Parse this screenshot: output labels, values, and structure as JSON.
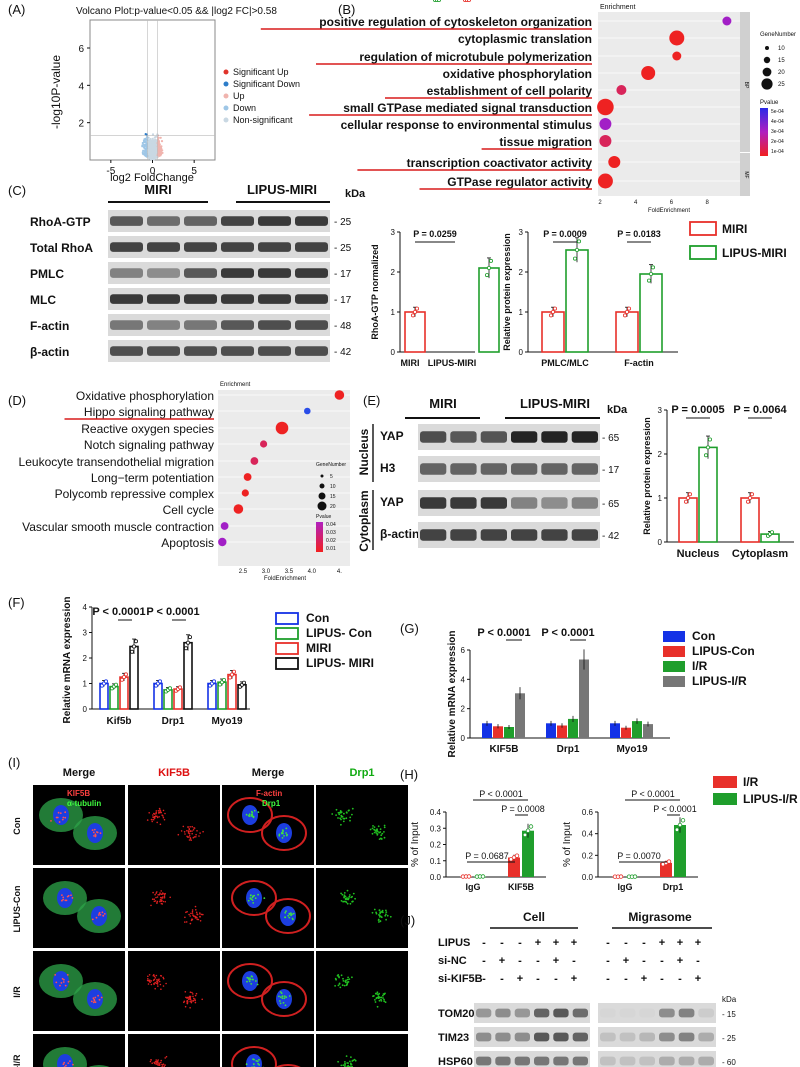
{
  "colors": {
    "red": "#e8302a",
    "green": "#1f9e2c",
    "blue": "#1432e6",
    "gray": "#777777",
    "black": "#111111",
    "sigUp": "#e0332b",
    "sigDown": "#2d7dc9",
    "up": "#f0b4ae",
    "down": "#9ec6e6",
    "nonsig": "#c9d8e3"
  },
  "panelA": {
    "label": "(A)",
    "title": "Volcano Plot:p-value<0.05 && |log2 FC|>0.58",
    "ylabel": "-log10P-value",
    "xlabel": "log2 FoldChange",
    "yticks": [
      "2",
      "4",
      "6"
    ],
    "xticks": [
      "-5",
      "0",
      "5"
    ],
    "legend": [
      {
        "name": "Significant Up",
        "color": "#e0332b"
      },
      {
        "name": "Significant Down",
        "color": "#2d7dc9"
      },
      {
        "name": "Up",
        "color": "#f0b4ae"
      },
      {
        "name": "Down",
        "color": "#9ec6e6"
      },
      {
        "name": "Non-significant",
        "color": "#c9d8e3"
      }
    ]
  },
  "panelB": {
    "label": "(B)",
    "axis_title": "Enrichment",
    "xlabel": "FoldEnrichment",
    "xticks": [
      "2",
      "4",
      "6",
      "8"
    ],
    "terms": [
      {
        "name": "positive regulation of cytoskeleton organization",
        "underline": true,
        "fe": 9.1,
        "size": 10,
        "p": 5e-05,
        "group": "BP"
      },
      {
        "name": "cytoplasmic translation",
        "underline": false,
        "fe": 6.3,
        "size": 22,
        "p": 5e-06,
        "group": "BP"
      },
      {
        "name": "regulation of microtubule polymerization",
        "underline": true,
        "fe": 6.3,
        "size": 10,
        "p": 1e-05,
        "group": "BP"
      },
      {
        "name": "oxidative phosphorylation",
        "underline": false,
        "fe": 4.7,
        "size": 20,
        "p": 5e-06,
        "group": "BP"
      },
      {
        "name": "establishment of cell polarity",
        "underline": true,
        "fe": 3.2,
        "size": 12,
        "p": 3e-05,
        "group": "BP"
      },
      {
        "name": "small GTPase mediated signal transduction",
        "underline": true,
        "fe": 2.3,
        "size": 25,
        "p": 1e-05,
        "group": "BP"
      },
      {
        "name": "cellular response to environmental stimulus",
        "underline": false,
        "fe": 2.3,
        "size": 16,
        "p": 4e-05,
        "group": "BP"
      },
      {
        "name": "tissue migration",
        "underline": true,
        "fe": 2.3,
        "size": 16,
        "p": 3.8e-05,
        "group": "BP"
      },
      {
        "name": "transcription coactivator activity",
        "underline": true,
        "fe": 2.8,
        "size": 16,
        "p": 1e-05,
        "group": "MF"
      },
      {
        "name": "GTPase regulator activity",
        "underline": true,
        "fe": 2.3,
        "size": 22,
        "p": 5e-06,
        "group": "MF"
      }
    ],
    "size_legend_title": "GeneNumber",
    "size_legend": [
      "10",
      "15",
      "20",
      "25"
    ],
    "p_legend_title": "Pvalue",
    "p_legend": [
      "5e-04",
      "4e-04",
      "3e-04",
      "2e-04",
      "1e-04"
    ],
    "groups": [
      "BP",
      "MF"
    ]
  },
  "panelC": {
    "label": "(C)",
    "groups": [
      "MIRI",
      "LIPUS-MIRI"
    ],
    "kda": "kDa",
    "rows": [
      {
        "name": "RhoA-GTP",
        "kda": "- 25"
      },
      {
        "name": "Total RhoA",
        "kda": "- 25"
      },
      {
        "name": "PMLC",
        "kda": "- 17"
      },
      {
        "name": "MLC",
        "kda": "- 17"
      },
      {
        "name": "F-actin",
        "kda": "- 48"
      },
      {
        "name": "β-actin",
        "kda": "- 42"
      }
    ],
    "chart1": {
      "ylabel": "RhoA-GTP normalized",
      "yticks": [
        "0",
        "1",
        "2",
        "3"
      ],
      "ylim": [
        0,
        3
      ],
      "categories": [
        "MIRI",
        "LIPUS-MIRI"
      ],
      "values": [
        1.0,
        2.1
      ],
      "pval": "P = 0.0259"
    },
    "chart2": {
      "ylabel": "Relative protein expression",
      "yticks": [
        "0",
        "1",
        "2",
        "3"
      ],
      "ylim": [
        0,
        3
      ],
      "categories": [
        "PMLC/MLC",
        "F-actin"
      ],
      "series": [
        {
          "name": "MIRI",
          "values": [
            1.0,
            1.0
          ]
        },
        {
          "name": "LIPUS-MIRI",
          "values": [
            2.55,
            1.95
          ]
        }
      ],
      "pvals": [
        "P = 0.0009",
        "P = 0.0183"
      ]
    },
    "legend": [
      "MIRI",
      "LIPUS-MIRI"
    ]
  },
  "panelD": {
    "label": "(D)",
    "axis_title": "Enrichment",
    "xlabel": "FoldEnrichment",
    "xticks": [
      "2.5",
      "3.0",
      "3.5",
      "4.0",
      "4."
    ],
    "terms": [
      {
        "name": "Oxidative phosphorylation",
        "underline": false,
        "fe": 4.6,
        "size": 10,
        "p": 0.04
      },
      {
        "name": "Hippo signaling pathway",
        "underline": true,
        "fe": 3.9,
        "size": 5,
        "p": 0.01
      },
      {
        "name": "Reactive oxygen species",
        "underline": false,
        "fe": 3.35,
        "size": 15,
        "p": 0.04
      },
      {
        "name": "Notch signaling pathway",
        "underline": false,
        "fe": 2.95,
        "size": 6,
        "p": 0.02
      },
      {
        "name": "Leukocyte transendothelial migration",
        "underline": false,
        "fe": 2.75,
        "size": 7,
        "p": 0.02
      },
      {
        "name": "Long−term potentiation",
        "underline": false,
        "fe": 2.6,
        "size": 7,
        "p": 0.03
      },
      {
        "name": "Polycomb repressive complex",
        "underline": false,
        "fe": 2.55,
        "size": 6,
        "p": 0.03
      },
      {
        "name": "Cell cycle",
        "underline": false,
        "fe": 2.4,
        "size": 10,
        "p": 0.04
      },
      {
        "name": "Vascular smooth muscle contraction",
        "underline": false,
        "fe": 2.1,
        "size": 7,
        "p": 0.01
      },
      {
        "name": "Apoptosis",
        "underline": false,
        "fe": 2.05,
        "size": 8,
        "p": 0.01
      }
    ],
    "size_legend_title": "GeneNumber",
    "size_legend": [
      "5",
      "10",
      "15",
      "20"
    ],
    "p_legend_title": "Pvalue",
    "p_legend": [
      "0.04",
      "0.03",
      "0.02",
      "0.01"
    ]
  },
  "panelE": {
    "label": "(E)",
    "groups": [
      "MIRI",
      "LIPUS-MIRI"
    ],
    "kda": "kDa",
    "rows": [
      {
        "name": "YAP",
        "kda": "- 65"
      },
      {
        "name": "H3",
        "kda": "- 17"
      },
      {
        "name": "YAP",
        "kda": "- 65"
      },
      {
        "name": "β-actin",
        "kda": "- 42"
      }
    ],
    "fractions": [
      "Nucleus",
      "Cytoplasm"
    ],
    "chart": {
      "ylabel": "Relative protein expression",
      "yticks": [
        "0",
        "1",
        "2",
        "3"
      ],
      "ylim": [
        0,
        3
      ],
      "categories": [
        "Nucleus",
        "Cytoplasm"
      ],
      "series": [
        {
          "name": "MIRI",
          "values": [
            1.0,
            1.0
          ]
        },
        {
          "name": "LIPUS-MIRI",
          "values": [
            2.15,
            0.18
          ]
        }
      ],
      "pvals": [
        "P = 0.0005",
        "P = 0.0064"
      ]
    }
  },
  "panelF": {
    "label": "(F)",
    "ylabel": "Relative mRNA expression",
    "yticks": [
      "0",
      "1",
      "2",
      "3",
      "4"
    ],
    "ylim": [
      0,
      4
    ],
    "categories": [
      "Kif5b",
      "Drp1",
      "Myo19"
    ],
    "series": [
      {
        "name": "Con",
        "values": [
          1.0,
          1.0,
          1.0
        ]
      },
      {
        "name": "LIPUS- Con",
        "values": [
          0.88,
          0.75,
          1.05
        ]
      },
      {
        "name": "MIRI",
        "values": [
          1.25,
          0.78,
          1.35
        ]
      },
      {
        "name": "LIPUS- MIRI",
        "values": [
          2.45,
          2.6,
          0.95
        ]
      }
    ],
    "pvals": [
      "P < 0.0001",
      "P < 0.0001"
    ]
  },
  "panelG": {
    "label": "(G)",
    "ylabel": "Relative mRNA expression",
    "yticks": [
      "0",
      "2",
      "4",
      "6"
    ],
    "ylim": [
      0,
      6
    ],
    "categories": [
      "KIF5B",
      "Drp1",
      "Myo19"
    ],
    "series": [
      {
        "name": "Con",
        "values": [
          1.0,
          1.0,
          1.0
        ]
      },
      {
        "name": "LIPUS-Con",
        "values": [
          0.8,
          0.85,
          0.7
        ]
      },
      {
        "name": "I/R",
        "values": [
          0.75,
          1.3,
          1.15
        ]
      },
      {
        "name": "LIPUS-I/R",
        "values": [
          3.05,
          5.35,
          0.95
        ]
      }
    ],
    "pvals": [
      "P < 0.0001",
      "P < 0.0001"
    ]
  },
  "panelH": {
    "label": "(H)",
    "legend": [
      "I/R",
      "LIPUS-I/R"
    ],
    "chart1": {
      "ylabel": "% of Input",
      "yticks": [
        "0.0",
        "0.1",
        "0.2",
        "0.3",
        "0.4"
      ],
      "ylim": [
        0,
        0.4
      ],
      "categories": [
        "IgG",
        "KIF5B"
      ],
      "series": [
        {
          "name": "I/R",
          "values": [
            0.003,
            0.12
          ]
        },
        {
          "name": "LIPUS-I/R",
          "values": [
            0.003,
            0.285
          ]
        }
      ],
      "pvals": [
        "P < 0.0001",
        "P = 0.0008",
        "P = 0.0687"
      ]
    },
    "chart2": {
      "ylabel": "% of Input",
      "yticks": [
        "0.0",
        "0.2",
        "0.4",
        "0.6"
      ],
      "ylim": [
        0,
        0.6
      ],
      "categories": [
        "IgG",
        "Drp1"
      ],
      "series": [
        {
          "name": "I/R",
          "values": [
            0.003,
            0.13
          ]
        },
        {
          "name": "LIPUS-I/R",
          "values": [
            0.003,
            0.48
          ]
        }
      ],
      "pvals": [
        "P < 0.0001",
        "P < 0.0001",
        "P = 0.0070"
      ]
    }
  },
  "panelI": {
    "label": "(I)",
    "cols": [
      "Merge",
      "KIF5B",
      "Merge",
      "Drp1"
    ],
    "rows": [
      "Con",
      "LIPUS-Con",
      "I/R",
      "LIPUS-I/R"
    ],
    "stain1": {
      "a": "KIF5B",
      "b": "α-tubulin"
    },
    "stain2": {
      "a": "F-actin",
      "b": "Drp1"
    }
  },
  "panelJ": {
    "label": "(J)",
    "groups": [
      "Cell",
      "Migrasome"
    ],
    "treatments": [
      {
        "name": "LIPUS",
        "signs": [
          "-",
          "-",
          "-",
          "+",
          "+",
          "+",
          "-",
          "-",
          "-",
          "+",
          "+",
          "+"
        ]
      },
      {
        "name": "si-NC",
        "signs": [
          "-",
          "+",
          "-",
          "-",
          "+",
          "-",
          "-",
          "+",
          "-",
          "-",
          "+",
          "-"
        ]
      },
      {
        "name": "si-KIF5B",
        "signs": [
          "-",
          "-",
          "+",
          "-",
          "-",
          "+",
          "-",
          "-",
          "+",
          "-",
          "-",
          "+"
        ]
      }
    ],
    "kda": "kDa",
    "rows": [
      {
        "name": "TOM20",
        "kda": "- 15"
      },
      {
        "name": "TIM23",
        "kda": "- 25"
      },
      {
        "name": "HSP60",
        "kda": "- 60"
      }
    ]
  }
}
